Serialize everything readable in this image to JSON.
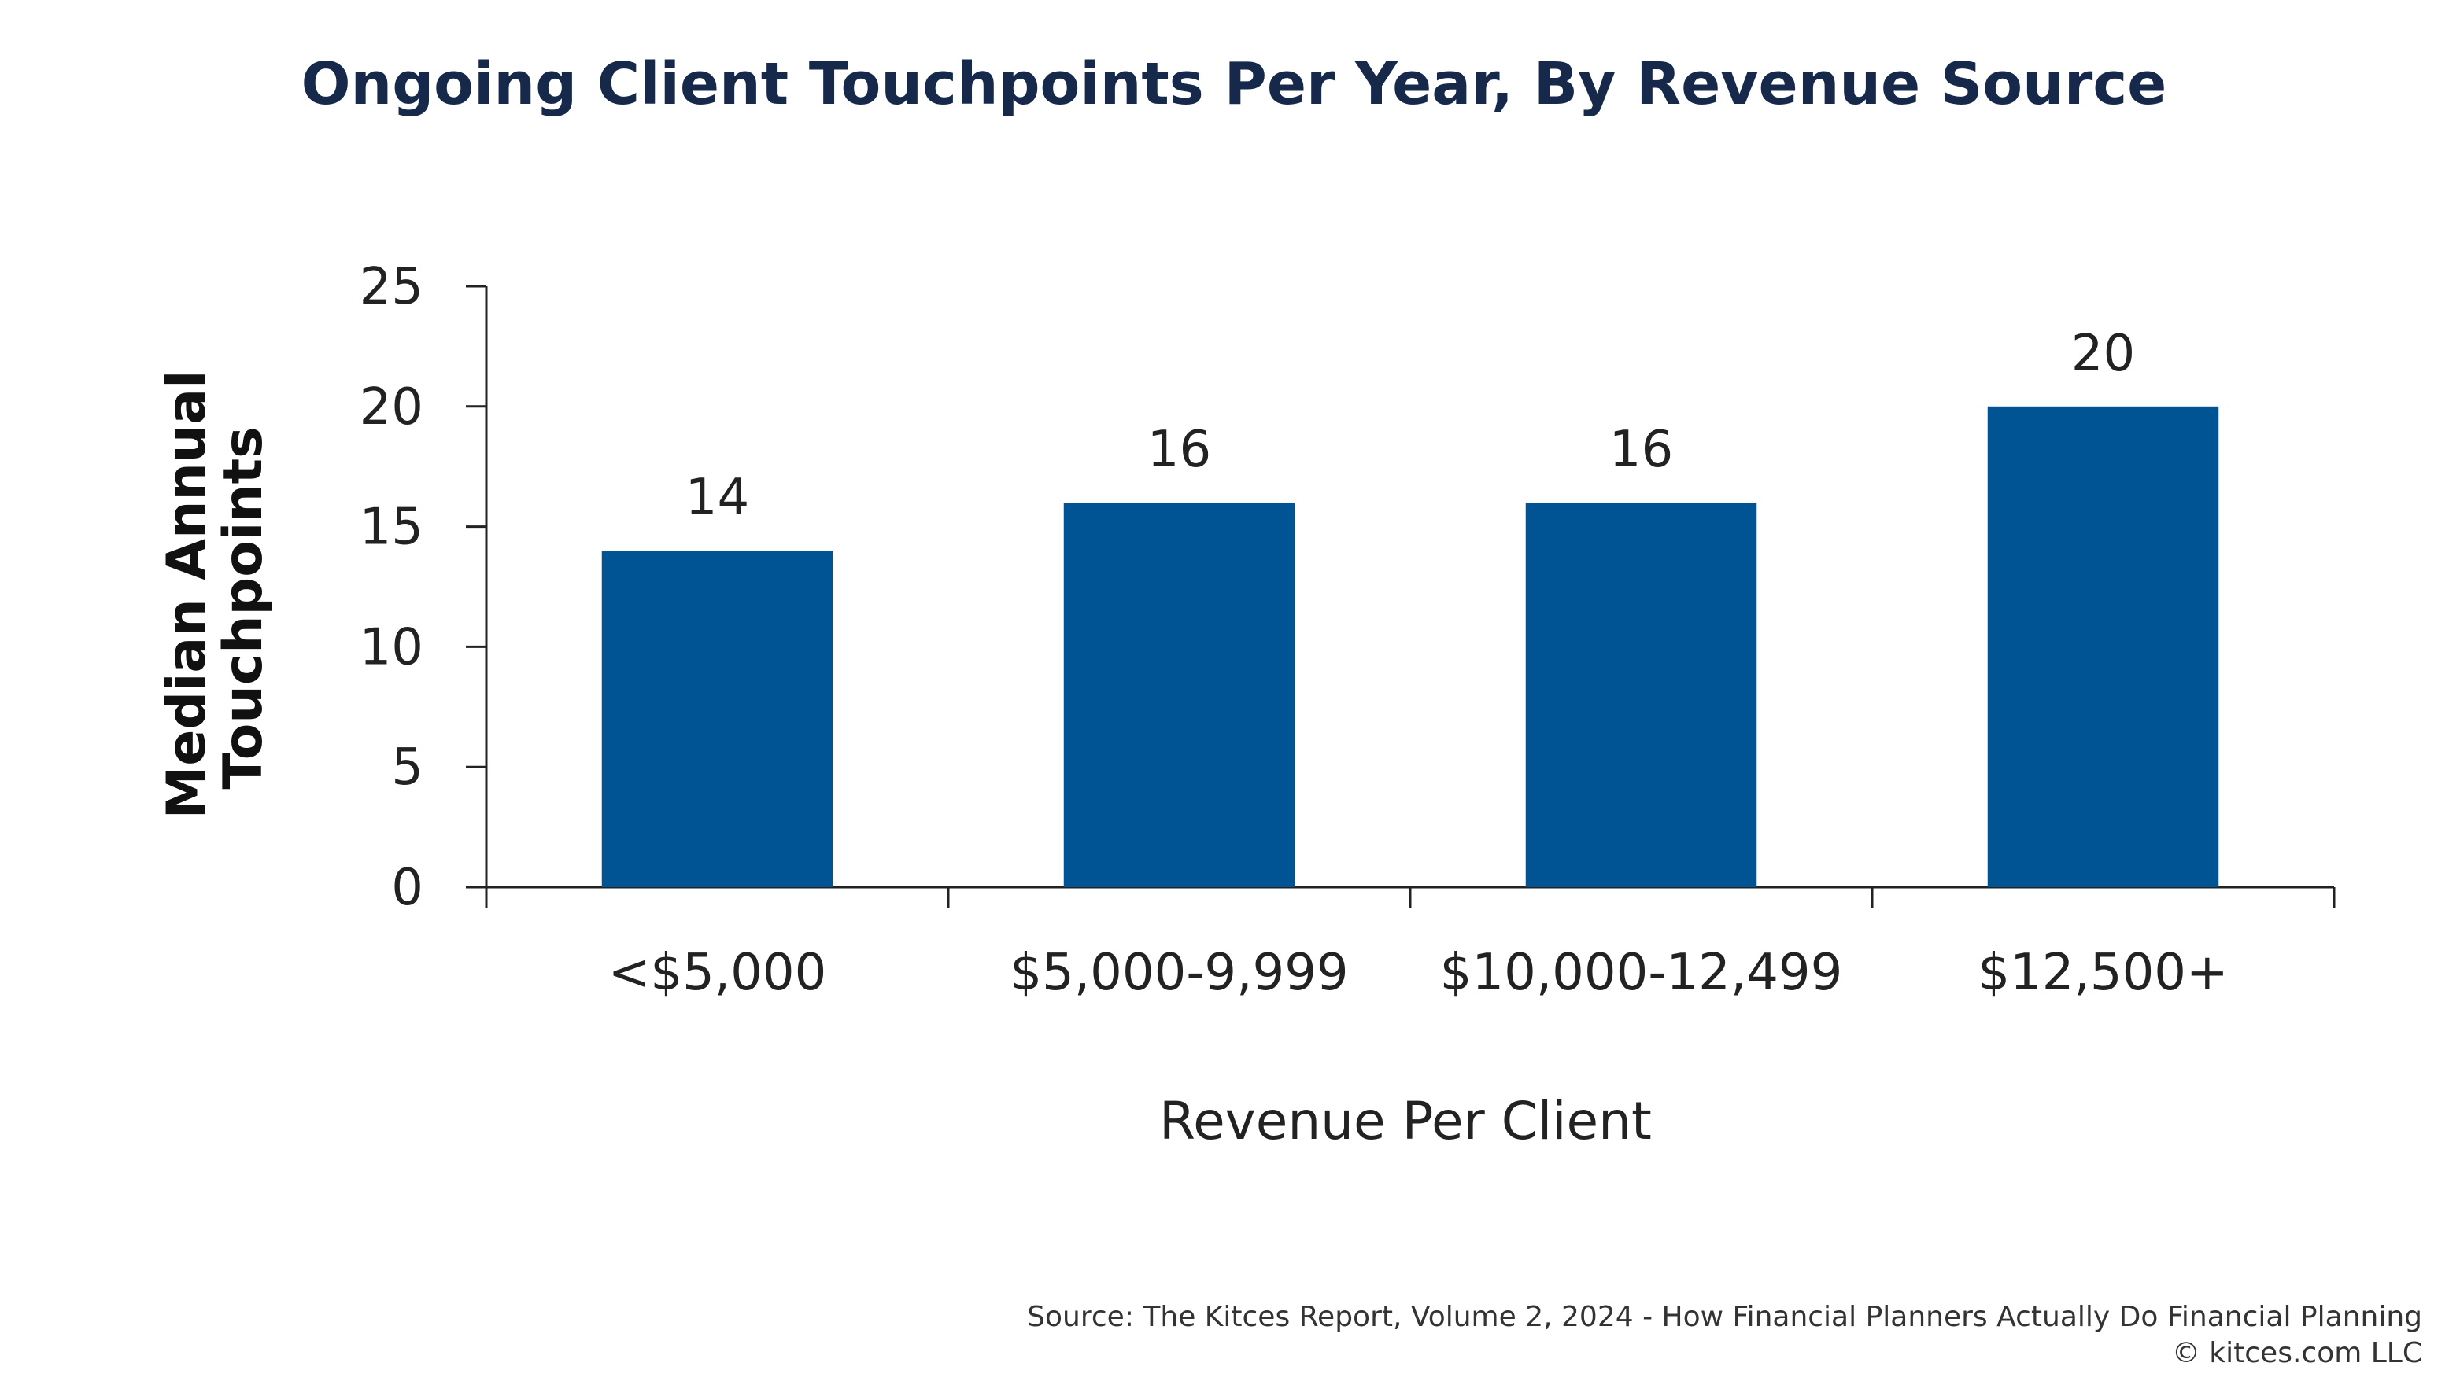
{
  "chart_data": {
    "type": "bar",
    "title": "Ongoing Client Touchpoints Per Year, By Revenue Source",
    "categories": [
      "<$5,000",
      "$5,000-9,999",
      "$10,000-12,499",
      "$12,500+"
    ],
    "values": [
      14,
      16,
      16,
      20
    ],
    "data_labels": [
      "14",
      "16",
      "16",
      "20"
    ],
    "xlabel": "Revenue Per Client",
    "ylabel_lines": [
      "Median Annual",
      "Touchpoints"
    ],
    "ylim": [
      0,
      25
    ],
    "yticks": [
      0,
      5,
      10,
      15,
      20,
      25
    ],
    "ytick_labels": [
      "0",
      "5",
      "10",
      "15",
      "20",
      "25"
    ],
    "bar_color": "#005494",
    "grid": false,
    "legend": "none"
  },
  "footer": {
    "source": "Source: The Kitces Report, Volume 2, 2024 - How Financial Planners Actually Do Financial Planning",
    "copyright": "© kitces.com LLC"
  }
}
